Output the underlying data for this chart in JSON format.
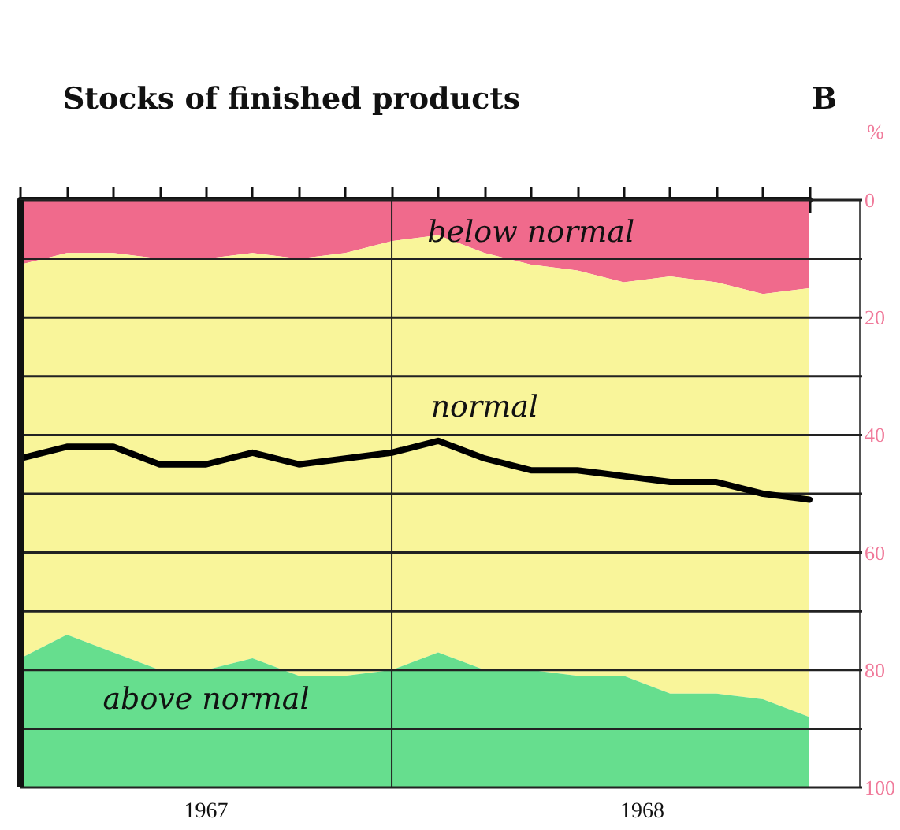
{
  "chart_data": {
    "type": "area",
    "title": "Stocks of finished products",
    "ylabel": "%",
    "annotations": [
      "B",
      "1967",
      "1968"
    ],
    "categories": [
      null,
      null,
      null,
      null,
      null,
      null,
      null,
      null,
      null,
      null,
      null,
      null,
      null,
      null,
      null,
      null,
      null,
      null
    ],
    "stacked": true,
    "series": [
      {
        "name": "below normal",
        "color": "#f06a8c",
        "values": [
          11,
          9,
          9,
          10,
          10,
          9,
          10,
          9,
          7,
          6,
          9,
          11,
          12,
          14,
          13,
          14,
          16,
          15
        ]
      },
      {
        "name": "normal",
        "color": "#f9f59a",
        "values": [
          67,
          65,
          68,
          70,
          70,
          69,
          71,
          72,
          73,
          71,
          71,
          69,
          69,
          67,
          71,
          70,
          69,
          73
        ]
      },
      {
        "name": "above normal",
        "color": "#66de8e",
        "values": [
          22,
          26,
          23,
          20,
          20,
          22,
          19,
          19,
          20,
          23,
          20,
          20,
          19,
          19,
          16,
          16,
          15,
          12
        ]
      },
      {
        "type": "line",
        "color": "#000000",
        "values": [
          44,
          42,
          42,
          45,
          45,
          43,
          45,
          44,
          43,
          41,
          44,
          46,
          46,
          47,
          48,
          48,
          50,
          51
        ]
      }
    ],
    "ylim": [
      100,
      0
    ],
    "yticks": [
      0,
      {
        "value": 10,
        "label": null
      },
      20,
      {
        "value": 30,
        "label": null
      },
      40,
      {
        "value": 50,
        "label": null
      },
      60,
      {
        "value": 70,
        "label": null
      },
      80,
      {
        "value": 90,
        "label": null
      },
      100
    ],
    "grid": "y",
    "marker": "none",
    "line_style": "solid"
  }
}
